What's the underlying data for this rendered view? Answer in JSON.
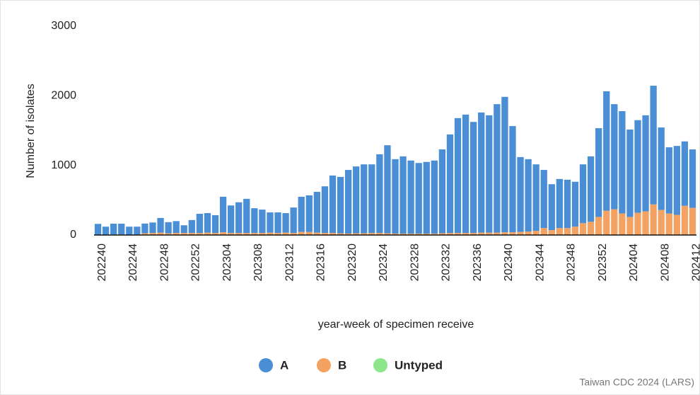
{
  "chart_data": {
    "type": "stacked-bar",
    "ylabel": "Number of isolates",
    "xlabel": "year-week of specimen receive",
    "source": "Taiwan CDC 2024 (LARS)",
    "categories": [
      "202240",
      null,
      null,
      null,
      "202244",
      null,
      null,
      null,
      "202248",
      null,
      null,
      null,
      "202252",
      null,
      null,
      null,
      "202304",
      null,
      null,
      null,
      "202308",
      null,
      null,
      null,
      "202312",
      null,
      null,
      null,
      "202316",
      null,
      null,
      null,
      "202320",
      null,
      null,
      null,
      "202324",
      null,
      null,
      null,
      "202328",
      null,
      null,
      null,
      "202332",
      null,
      null,
      null,
      "202336",
      null,
      null,
      null,
      "202340",
      null,
      null,
      null,
      "202344",
      null,
      null,
      null,
      "202348",
      null,
      null,
      null,
      "202352",
      null,
      null,
      null,
      "202404",
      null,
      null,
      null,
      "202408",
      null,
      null,
      null,
      "202412"
    ],
    "series": [
      {
        "name": "A",
        "color": "#4a8fd6",
        "values": [
          155,
          115,
          155,
          155,
          115,
          115,
          140,
          150,
          210,
          160,
          170,
          110,
          185,
          275,
          280,
          255,
          510,
          395,
          440,
          490,
          355,
          335,
          290,
          295,
          280,
          365,
          505,
          525,
          585,
          670,
          825,
          810,
          915,
          960,
          990,
          985,
          1130,
          1265,
          1070,
          1110,
          1050,
          1015,
          1030,
          1050,
          1205,
          1415,
          1650,
          1700,
          1595,
          1725,
          1685,
          1845,
          1945,
          1525,
          1075,
          1040,
          955,
          835,
          660,
          705,
          695,
          645,
          845,
          940,
          1275,
          1715,
          1510,
          1470,
          1255,
          1330,
          1380,
          1705,
          1185,
          950,
          990,
          925,
          840
        ]
      },
      {
        "name": "B",
        "color": "#f4a262",
        "values": [
          5,
          5,
          8,
          8,
          5,
          5,
          25,
          30,
          35,
          25,
          30,
          30,
          30,
          30,
          35,
          30,
          40,
          30,
          30,
          30,
          30,
          30,
          35,
          30,
          35,
          30,
          45,
          45,
          35,
          30,
          30,
          25,
          20,
          25,
          25,
          30,
          30,
          25,
          20,
          20,
          20,
          20,
          20,
          20,
          25,
          30,
          30,
          30,
          30,
          35,
          35,
          35,
          40,
          40,
          45,
          50,
          60,
          100,
          70,
          100,
          100,
          120,
          170,
          190,
          260,
          350,
          370,
          310,
          260,
          320,
          340,
          440,
          360,
          310,
          290,
          420,
          390
        ]
      },
      {
        "name": "Untyped",
        "color": "#8ee68a",
        "values": [
          0,
          0,
          0,
          0,
          0,
          0,
          0,
          0,
          0,
          0,
          0,
          0,
          0,
          0,
          0,
          0,
          0,
          0,
          0,
          0,
          0,
          0,
          0,
          0,
          0,
          0,
          0,
          0,
          0,
          0,
          0,
          0,
          0,
          0,
          0,
          0,
          0,
          0,
          0,
          0,
          0,
          0,
          0,
          0,
          0,
          0,
          0,
          0,
          0,
          0,
          0,
          0,
          0,
          0,
          0,
          0,
          0,
          0,
          0,
          0,
          0,
          0,
          0,
          0,
          0,
          0,
          0,
          0,
          0,
          0,
          0,
          0,
          0,
          0,
          0,
          0,
          0
        ]
      }
    ],
    "ylim": [
      0,
      3000
    ],
    "yticks": [
      0,
      1000,
      2000,
      3000
    ],
    "grid": false
  }
}
